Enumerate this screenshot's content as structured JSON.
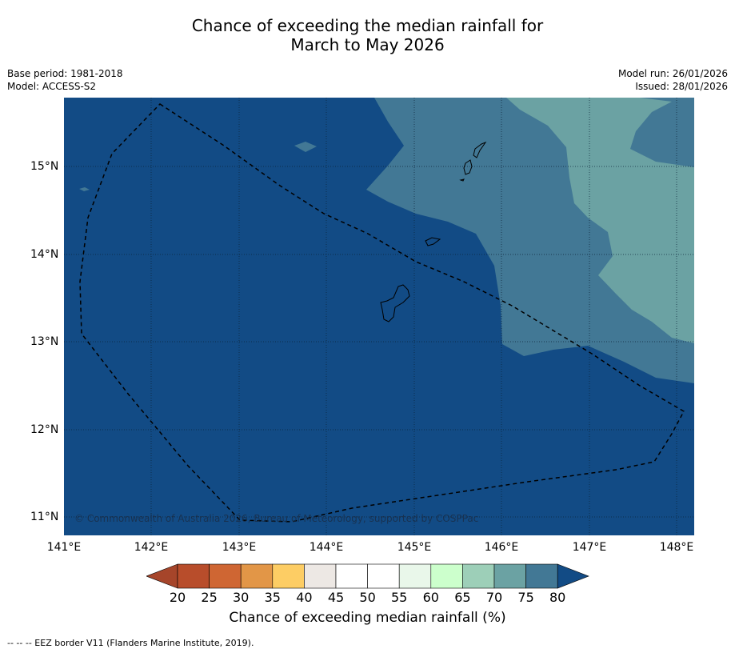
{
  "title_line1": "Chance of exceeding the median rainfall for",
  "title_line2": "March to May 2026",
  "meta": {
    "base_period": "Base period: 1981-2018",
    "model": "Model: ACCESS-S2",
    "model_run": "Model run: 26/01/2026",
    "issued": "Issued: 28/01/2026"
  },
  "map": {
    "lat_labels": [
      "15°N",
      "14°N",
      "13°N",
      "12°N",
      "11°N"
    ],
    "lon_labels": [
      "141°E",
      "142°E",
      "143°E",
      "144°E",
      "145°E",
      "146°E",
      "147°E",
      "148°E"
    ],
    "copyright": "© Commonwealth of Australia 2026, Bureau of Meteorology, supported by COSPPac",
    "colors": {
      "band_80_plus": "#124b85",
      "band_75_80": "#427895",
      "band_70_75": "#6ba2a3"
    }
  },
  "colorbar": {
    "ticks": [
      "20",
      "25",
      "30",
      "35",
      "40",
      "45",
      "50",
      "55",
      "60",
      "65",
      "70",
      "75",
      "80"
    ],
    "colors": [
      "#a6452a",
      "#b84d2b",
      "#cf6633",
      "#e29647",
      "#fdcd64",
      "#ede8e4",
      "#ffffff",
      "#ffffff",
      "#e9f7ea",
      "#ccffcc",
      "#9dcfb8",
      "#6ba2a3",
      "#427895",
      "#124b85"
    ],
    "label": "Chance of exceeding median rainfall (%)"
  },
  "footnote": "-- -- -- EEZ border V11 (Flanders Marine Institute, 2019)."
}
